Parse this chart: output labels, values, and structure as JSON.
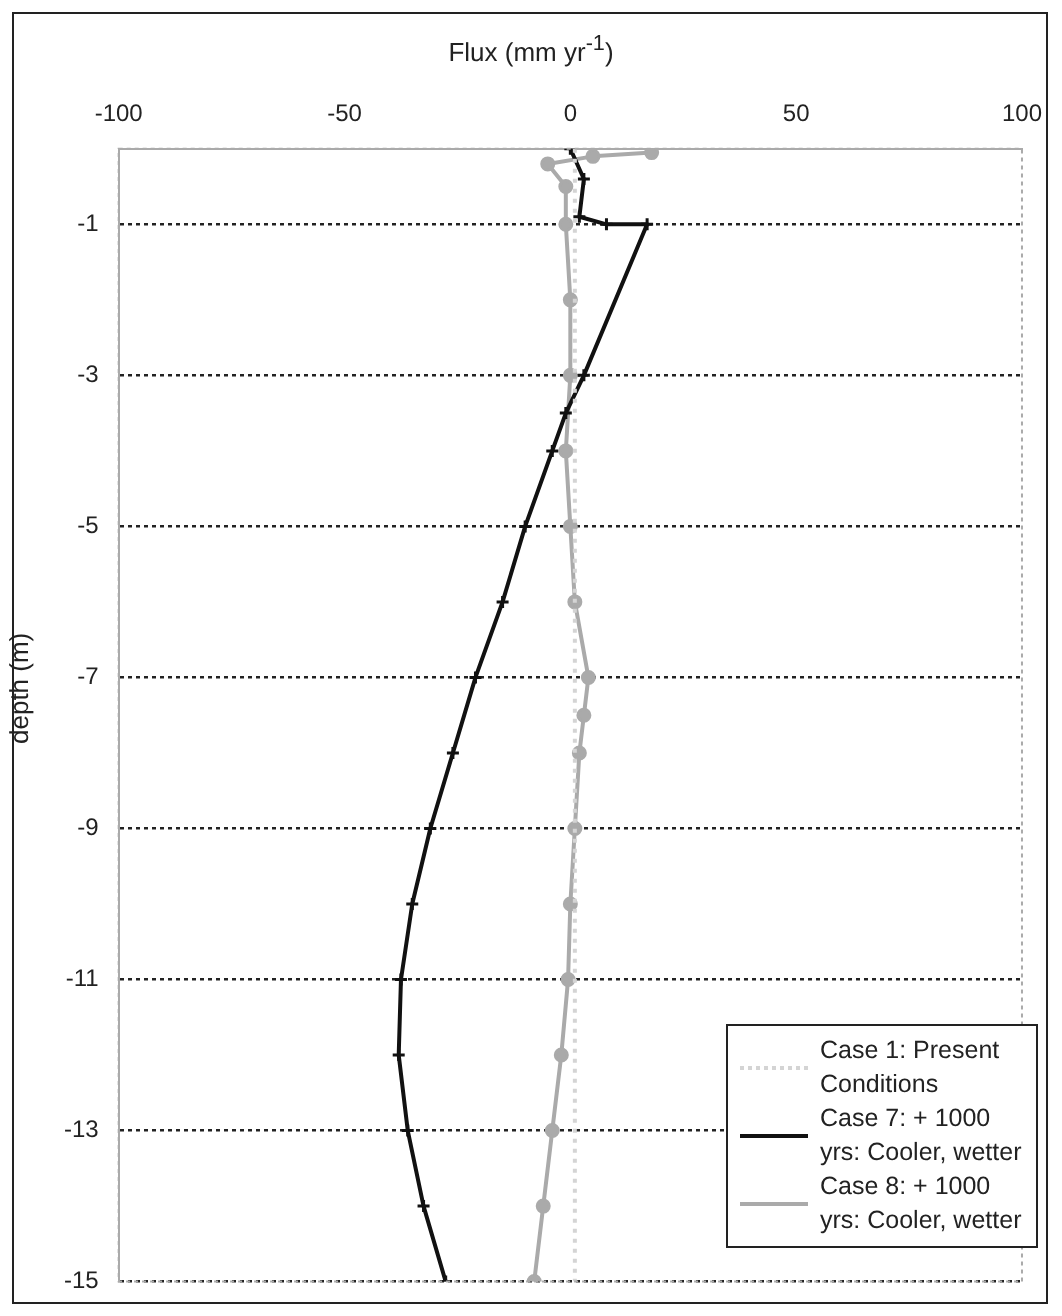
{
  "chart_data": {
    "type": "line",
    "xlabel": "Flux (mm yr$^{-1}$)",
    "ylabel": "depth (m)",
    "xlim": [
      -100,
      100
    ],
    "xticks": [
      -100,
      -50,
      0,
      50,
      100
    ],
    "ylim": [
      -15,
      0
    ],
    "yticks": [
      -1,
      -3,
      -5,
      -7,
      -9,
      -11,
      -13,
      -15
    ],
    "grid": "y",
    "legend": "bottom right",
    "series": [
      {
        "name": "Case 1: Present Conditions",
        "color": "#d4d4d4",
        "line_style": "dotted",
        "marker": "none",
        "x": [
          1,
          1
        ],
        "values": [
          0,
          -15
        ]
      },
      {
        "name": "Case 7: + 1000 yrs: Cooler, wetter",
        "color": "#111111",
        "line_style": "solid",
        "marker": "cross",
        "x": [
          0,
          3,
          2,
          8,
          17,
          3,
          -1,
          -4,
          -10,
          -15,
          -21,
          -26,
          -31,
          -35,
          -37.5,
          -38,
          -36,
          -32.5,
          -27.6
        ],
        "values": [
          0,
          -0.4,
          -0.9,
          -1,
          -1,
          -3,
          -3.5,
          -4,
          -5,
          -6,
          -7,
          -8,
          -9,
          -10,
          -11,
          -12,
          -13,
          -14,
          -15
        ]
      },
      {
        "name": "Case 8: + 1000 yrs: Cooler, wetter",
        "color": "#aaaaaa",
        "line_style": "solid",
        "marker": "circle",
        "x": [
          18,
          5,
          -5,
          -1,
          -1,
          0,
          0,
          -1,
          0,
          1,
          4,
          3,
          2,
          1,
          0,
          -0.5,
          -2,
          -4,
          -6,
          -8
        ],
        "values": [
          -0.05,
          -0.1,
          -0.2,
          -0.5,
          -1,
          -2,
          -3,
          -4,
          -5,
          -6,
          -7,
          -7.5,
          -8,
          -9,
          -10,
          -11,
          -12,
          -13,
          -14,
          -15
        ]
      }
    ]
  }
}
